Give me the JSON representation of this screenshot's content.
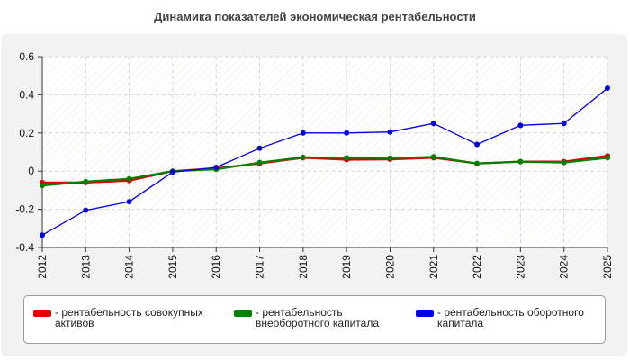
{
  "chart_data": {
    "type": "line",
    "title": "Динамика показателей экономическая рентабельности",
    "xlabel": "",
    "ylabel": "",
    "x": [
      "2012",
      "2013",
      "2014",
      "2015",
      "2016",
      "2017",
      "2018",
      "2019",
      "2020",
      "2021",
      "2022",
      "2023",
      "2024",
      "2025"
    ],
    "ylim": [
      -0.4,
      0.6
    ],
    "yticks": [
      "0.6",
      "0.4",
      "0.2",
      "0",
      "-0.2",
      "-0.4"
    ],
    "grid": true,
    "legend_position": "bottom",
    "series": [
      {
        "name": "- рентабельность совокупных активов",
        "color": "#e00000",
        "values": [
          -0.06,
          -0.06,
          -0.05,
          0.0,
          0.015,
          0.04,
          0.07,
          0.06,
          0.062,
          0.07,
          0.04,
          0.05,
          0.05,
          0.08
        ]
      },
      {
        "name": "- рентабельность внеоборотного капитала",
        "color": "#008000",
        "values": [
          -0.075,
          -0.055,
          -0.04,
          0.0,
          0.01,
          0.045,
          0.072,
          0.07,
          0.068,
          0.075,
          0.04,
          0.05,
          0.045,
          0.07
        ]
      },
      {
        "name": "- рентабельность оборотного капитала",
        "color": "#0000e0",
        "values": [
          -0.335,
          -0.205,
          -0.16,
          -0.005,
          0.02,
          0.12,
          0.2,
          0.2,
          0.205,
          0.25,
          0.14,
          0.24,
          0.25,
          0.435
        ]
      }
    ]
  }
}
